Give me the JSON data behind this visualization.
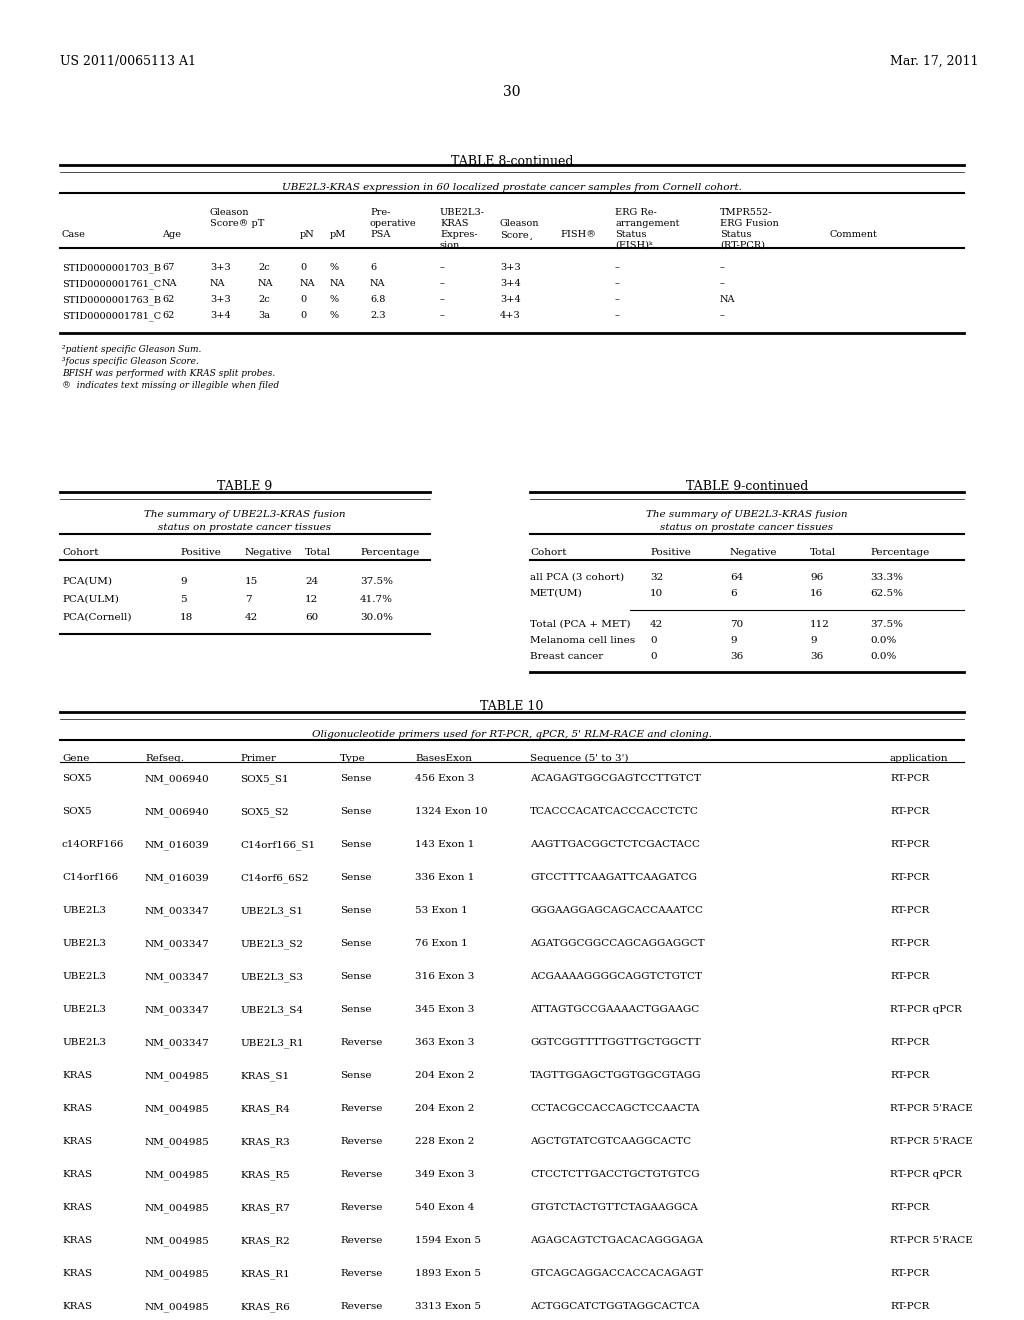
{
  "header_left": "US 2011/0065113 A1",
  "header_right": "Mar. 17, 2011",
  "page_number": "30",
  "bg_color": "#ffffff",
  "text_color": "#000000",
  "table8_title": "TABLE 8-continued",
  "table8_subtitle": "UBE2L3-KRAS expression in 60 localized prostate cancer samples from Cornell cohort.",
  "table8_col_headers": [
    "Case",
    "Age",
    "Gleason\nScore® pT",
    "",
    "pN",
    "pM",
    "Pre-\noperative\nPSA",
    "UBE2L3-\nKRAS\nExpres-\nsion",
    "Gleason\nScore¸",
    "FISH®",
    "ERG Re-\narrangement\nStatus\n(FISH)ᵏ",
    "TMPR552-\nERG Fusion\nStatus\n(RT-PCR)",
    "Comment"
  ],
  "table8_data": [
    [
      "STID0000001703_B",
      "67",
      "3+3",
      "2c",
      "0",
      "%",
      "6",
      "–",
      "3+3",
      "",
      "–",
      "–",
      ""
    ],
    [
      "STID0000001761_C",
      "NA",
      "NA",
      "NA",
      "NA",
      "NA",
      "NA",
      "–",
      "3+4",
      "",
      "–",
      "–",
      ""
    ],
    [
      "STID0000001763_B",
      "62",
      "3+3",
      "2c",
      "0",
      "%",
      "6.8",
      "–",
      "3+4",
      "",
      "–",
      "NA",
      ""
    ],
    [
      "STID0000001781_C",
      "62",
      "3+4",
      "3a",
      "0",
      "%",
      "2.3",
      "–",
      "4+3",
      "",
      "–",
      "–",
      ""
    ]
  ],
  "table8_footnotes": [
    "²patient specific Gleason Sum.",
    "ᵎocus specific Gleason Score.",
    "ᵏFISH was performed with KRAS split probes.",
    "® indicates text missing or illegible when filed"
  ],
  "table9_title": "TABLE 9",
  "table9_subtitle1": "The summary of UBE2L3-KRAS fusion",
  "table9_subtitle2": "status on prostate cancer tissues",
  "table9_col_headers": [
    "Cohort",
    "Positive",
    "Negative",
    "Total",
    "Percentage"
  ],
  "table9_data": [
    [
      "PCA(UM)",
      "9",
      "15",
      "24",
      "37.5%"
    ],
    [
      "PCA(ULM)",
      "5",
      "7",
      "12",
      "41.7%"
    ],
    [
      "PCA(Cornell)",
      "18",
      "42",
      "60",
      "30.0%"
    ]
  ],
  "table9c_title": "TABLE 9-continued",
  "table9c_subtitle1": "The summary of UBE2L3-KRAS fusion",
  "table9c_subtitle2": "status on prostate cancer tissues",
  "table9c_col_headers": [
    "Cohort",
    "Positive",
    "Negative",
    "Total",
    "Percentage"
  ],
  "table9c_data": [
    [
      "all PCA (3 cohort)",
      "32",
      "64",
      "96",
      "33.3%"
    ],
    [
      "MET(UM)",
      "10",
      "6",
      "16",
      "62.5%"
    ],
    [
      "Total (PCA + MET)",
      "42",
      "70",
      "112",
      "37.5%"
    ],
    [
      "Melanoma cell lines",
      "0",
      "9",
      "9",
      "0.0%"
    ],
    [
      "Breast cancer",
      "0",
      "36",
      "36",
      "0.0%"
    ]
  ],
  "table10_title": "TABLE 10",
  "table10_subtitle": "Oligonucleotide primers used for RT-PCR, qPCR, 5' RLM-RACE and cloning.",
  "table10_col_headers": [
    "Gene",
    "Refseq.",
    "Primer",
    "Type",
    "BasesExon",
    "Sequence (5' to 3')",
    "",
    "application"
  ],
  "table10_data": [
    [
      "SOX5",
      "NM_006940",
      "SOX5_S1",
      "Sense",
      "456 Exon 3",
      "ACAGAGTGGCGAGTCCTTGTCT",
      "",
      "RT-PCR"
    ],
    [
      "SOX5",
      "NM_006940",
      "SOX5_S2",
      "Sense",
      "1324 Exon 10",
      "TCACCCACATCACCCACCTCTC",
      "",
      "RT-PCR"
    ],
    [
      "c14ORF166",
      "NM_016039",
      "C14orf166_S1",
      "Sense",
      "143 Exon 1",
      "AAGTTGACGGCTCTCGACTACC",
      "",
      "RT-PCR"
    ],
    [
      "C14orf166",
      "NM_016039",
      "C14orf6_6S2",
      "Sense",
      "336 Exon 1",
      "GTCCTTTCAAGATTCAAGATCG",
      "",
      "RT-PCR"
    ],
    [
      "UBE2L3",
      "NM_003347",
      "UBE2L3_S1",
      "Sense",
      "53 Exon 1",
      "GGGAAGGAGCAGCACCAAATCC",
      "",
      "RT-PCR"
    ],
    [
      "UBE2L3",
      "NM_003347",
      "UBE2L3_S2",
      "Sense",
      "76 Exon 1",
      "AGATGGCGGCCAGCAGGAGGCT",
      "",
      "RT-PCR"
    ],
    [
      "UBE2L3",
      "NM_003347",
      "UBE2L3_S3",
      "Sense",
      "316 Exon 3",
      "ACGAAAAGGGGCAGGTCTGTCT",
      "",
      "RT-PCR"
    ],
    [
      "UBE2L3",
      "NM_003347",
      "UBE2L3_S4",
      "Sense",
      "345 Exon 3",
      "ATTAGTGCCGAAAACTGGAAGC",
      "",
      "RT-PCR qPCR"
    ],
    [
      "UBE2L3",
      "NM_003347",
      "UBE2L3_R1",
      "Reverse",
      "363 Exon 3",
      "GGTCGGTTTTGGTTGCTGGCTT",
      "",
      "RT-PCR"
    ],
    [
      "KRAS",
      "NM_004985",
      "KRAS_S1",
      "Sense",
      "204 Exon 2",
      "TAGTTGGAGCTGGTGGCGTAGG",
      "",
      "RT-PCR"
    ],
    [
      "KRAS",
      "NM_004985",
      "KRAS_R4",
      "Reverse",
      "204 Exon 2",
      "CCTACGCCACCAGCTCCAACTA",
      "",
      "RT-PCR 5'RACE"
    ],
    [
      "KRAS",
      "NM_004985",
      "KRAS_R3",
      "Reverse",
      "228 Exon 2",
      "AGCTGTATCGTCAAGGCACTC",
      "",
      "RT-PCR 5'RACE"
    ],
    [
      "KRAS",
      "NM_004985",
      "KRAS_R5",
      "Reverse",
      "349 Exon 3",
      "CTCCTCTTGACCTGCTGTGTCG",
      "",
      "RT-PCR qPCR"
    ],
    [
      "KRAS",
      "NM_004985",
      "KRAS_R7",
      "Reverse",
      "540 Exon 4",
      "GTGTCTACTGTTCTAGAAGGCA",
      "",
      "RT-PCR"
    ],
    [
      "KRAS",
      "NM_004985",
      "KRAS_R2",
      "Reverse",
      "1594 Exon 5",
      "AGAGCAGTCTGACACAGGGAGA",
      "",
      "RT-PCR 5'RACE"
    ],
    [
      "KRAS",
      "NM_004985",
      "KRAS_R1",
      "Reverse",
      "1893 Exon 5",
      "GTCAGCAGGACCACCACAGAGT",
      "",
      "RT-PCR"
    ],
    [
      "KRAS",
      "NM_004985",
      "KRAS_R6",
      "Reverse",
      "3313 Exon 5",
      "ACTGGCATCTGGTAGGCACTCA",
      "",
      "RT-PCR"
    ]
  ]
}
